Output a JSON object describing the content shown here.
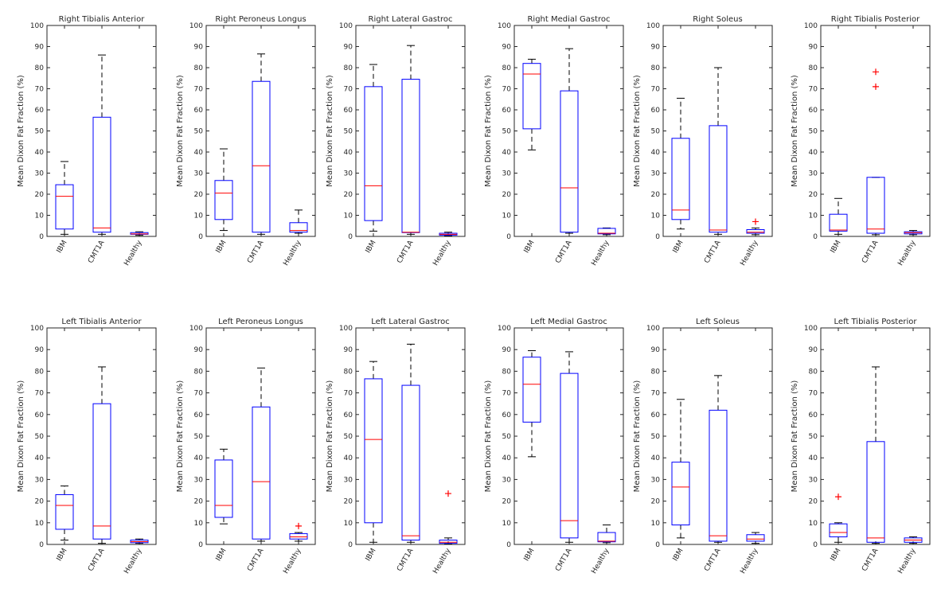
{
  "figure": {
    "layout": "2 rows x 6 columns of box plots"
  },
  "colors": {
    "box": "#0000ff",
    "median": "#ff0000",
    "whisker": "#000000",
    "outlier": "#ff0000",
    "axis": "#262626",
    "background": "#ffffff"
  },
  "chart_data": [
    {
      "type": "box",
      "title": "Right Tibialis Anterior",
      "ylabel": "Mean Dixon Fat Fraction (%)",
      "ylim": [
        0,
        100
      ],
      "yticks": [
        0,
        10,
        20,
        30,
        40,
        50,
        60,
        70,
        80,
        90,
        100
      ],
      "categories": [
        "IBM",
        "CMT1A",
        "Healthy"
      ],
      "boxes": [
        {
          "min": 1,
          "q1": 3.5,
          "median": 19,
          "q3": 24.5,
          "max": 35.5,
          "outliers": []
        },
        {
          "min": 1,
          "q1": 2,
          "median": 4,
          "q3": 56.5,
          "max": 86,
          "outliers": []
        },
        {
          "min": 0.5,
          "q1": 1,
          "median": 1.2,
          "q3": 1.8,
          "max": 2.2,
          "outliers": []
        }
      ]
    },
    {
      "type": "box",
      "title": "Right Peroneus Longus",
      "ylabel": "Mean Dixon Fat Fraction (%)",
      "ylim": [
        0,
        100
      ],
      "yticks": [
        0,
        10,
        20,
        30,
        40,
        50,
        60,
        70,
        80,
        90,
        100
      ],
      "categories": [
        "IBM",
        "CMT1A",
        "Healthy"
      ],
      "boxes": [
        {
          "min": 2.8,
          "q1": 8,
          "median": 20.5,
          "q3": 26.5,
          "max": 41.5,
          "outliers": []
        },
        {
          "min": 1,
          "q1": 2,
          "median": 33.5,
          "q3": 73.5,
          "max": 86.5,
          "outliers": []
        },
        {
          "min": 1.5,
          "q1": 2,
          "median": 2.8,
          "q3": 6.5,
          "max": 12.5,
          "outliers": []
        }
      ]
    },
    {
      "type": "box",
      "title": "Right Lateral Gastroc",
      "ylabel": "Mean Dixon Fat Fraction (%)",
      "ylim": [
        0,
        100
      ],
      "yticks": [
        0,
        10,
        20,
        30,
        40,
        50,
        60,
        70,
        80,
        90,
        100
      ],
      "categories": [
        "IBM",
        "CMT1A",
        "Healthy"
      ],
      "boxes": [
        {
          "min": 2.5,
          "q1": 7.5,
          "median": 24,
          "q3": 71,
          "max": 81.5,
          "outliers": []
        },
        {
          "min": 1,
          "q1": 1.8,
          "median": 2,
          "q3": 74.5,
          "max": 90.5,
          "outliers": []
        },
        {
          "min": 0.3,
          "q1": 0.6,
          "median": 1,
          "q3": 1.5,
          "max": 2,
          "outliers": []
        }
      ]
    },
    {
      "type": "box",
      "title": "Right Medial Gastroc",
      "ylabel": "Mean Dixon Fat Fraction (%)",
      "ylim": [
        0,
        100
      ],
      "yticks": [
        0,
        10,
        20,
        30,
        40,
        50,
        60,
        70,
        80,
        90,
        100
      ],
      "categories": [
        "IBM",
        "CMT1A",
        "Healthy"
      ],
      "boxes": [
        {
          "min": 41,
          "q1": 51,
          "median": 77,
          "q3": 82,
          "max": 84,
          "outliers": []
        },
        {
          "min": 1.5,
          "q1": 2,
          "median": 23,
          "q3": 69,
          "max": 89,
          "outliers": []
        },
        {
          "min": 0.8,
          "q1": 1.2,
          "median": 1.5,
          "q3": 3.8,
          "max": 4,
          "outliers": []
        }
      ]
    },
    {
      "type": "box",
      "title": "Right Soleus",
      "ylabel": "Mean Dixon Fat Fraction (%)",
      "ylim": [
        0,
        100
      ],
      "yticks": [
        0,
        10,
        20,
        30,
        40,
        50,
        60,
        70,
        80,
        90,
        100
      ],
      "categories": [
        "IBM",
        "CMT1A",
        "Healthy"
      ],
      "boxes": [
        {
          "min": 3.5,
          "q1": 8,
          "median": 12.5,
          "q3": 46.5,
          "max": 65.5,
          "outliers": []
        },
        {
          "min": 1,
          "q1": 2,
          "median": 3,
          "q3": 52.5,
          "max": 80,
          "outliers": []
        },
        {
          "min": 0.8,
          "q1": 1.5,
          "median": 2,
          "q3": 3.2,
          "max": 4,
          "outliers": [
            7
          ]
        }
      ]
    },
    {
      "type": "box",
      "title": "Right Tibialis Posterior",
      "ylabel": "Mean Dixon Fat Fraction (%)",
      "ylim": [
        0,
        100
      ],
      "yticks": [
        0,
        10,
        20,
        30,
        40,
        50,
        60,
        70,
        80,
        90,
        100
      ],
      "categories": [
        "IBM",
        "CMT1A",
        "Healthy"
      ],
      "boxes": [
        {
          "min": 1,
          "q1": 2.5,
          "median": 3,
          "q3": 10.5,
          "max": 18,
          "outliers": []
        },
        {
          "min": 0.8,
          "q1": 1.5,
          "median": 3.5,
          "q3": 28,
          "max": 28,
          "outliers": [
            71,
            78
          ]
        },
        {
          "min": 0.8,
          "q1": 1.2,
          "median": 1.8,
          "q3": 2.2,
          "max": 2.8,
          "outliers": []
        }
      ]
    },
    {
      "type": "box",
      "title": "Left Tibialis Anterior",
      "ylabel": "Mean Dixon Fat Fraction (%)",
      "ylim": [
        0,
        100
      ],
      "yticks": [
        0,
        10,
        20,
        30,
        40,
        50,
        60,
        70,
        80,
        90,
        100
      ],
      "categories": [
        "IBM",
        "CMT1A",
        "Healthy"
      ],
      "boxes": [
        {
          "min": 2,
          "q1": 7,
          "median": 18,
          "q3": 23,
          "max": 27,
          "outliers": []
        },
        {
          "min": 0.5,
          "q1": 2.5,
          "median": 8.5,
          "q3": 65,
          "max": 82,
          "outliers": []
        },
        {
          "min": 0.5,
          "q1": 0.8,
          "median": 1.3,
          "q3": 2,
          "max": 2.5,
          "outliers": []
        }
      ]
    },
    {
      "type": "box",
      "title": "Left Peroneus Longus",
      "ylabel": "Mean Dixon Fat Fraction (%)",
      "ylim": [
        0,
        100
      ],
      "yticks": [
        0,
        10,
        20,
        30,
        40,
        50,
        60,
        70,
        80,
        90,
        100
      ],
      "categories": [
        "IBM",
        "CMT1A",
        "Healthy"
      ],
      "boxes": [
        {
          "min": 9.5,
          "q1": 12.5,
          "median": 18,
          "q3": 39,
          "max": 44,
          "outliers": []
        },
        {
          "min": 1.5,
          "q1": 2.5,
          "median": 29,
          "q3": 63.5,
          "max": 81.5,
          "outliers": []
        },
        {
          "min": 1.5,
          "q1": 2.5,
          "median": 3.5,
          "q3": 5,
          "max": 5.5,
          "outliers": [
            8.5
          ]
        }
      ]
    },
    {
      "type": "box",
      "title": "Left Lateral Gastroc",
      "ylabel": "Mean Dixon Fat Fraction (%)",
      "ylim": [
        0,
        100
      ],
      "yticks": [
        0,
        10,
        20,
        30,
        40,
        50,
        60,
        70,
        80,
        90,
        100
      ],
      "categories": [
        "IBM",
        "CMT1A",
        "Healthy"
      ],
      "boxes": [
        {
          "min": 1,
          "q1": 10,
          "median": 48.5,
          "q3": 76.5,
          "max": 84.5,
          "outliers": []
        },
        {
          "min": 1,
          "q1": 2,
          "median": 4,
          "q3": 73.5,
          "max": 92.5,
          "outliers": []
        },
        {
          "min": 0.3,
          "q1": 0.5,
          "median": 1,
          "q3": 2,
          "max": 3,
          "outliers": [
            23.5
          ]
        }
      ]
    },
    {
      "type": "box",
      "title": "Left Medial Gastroc",
      "ylabel": "Mean Dixon Fat Fraction (%)",
      "ylim": [
        0,
        100
      ],
      "yticks": [
        0,
        10,
        20,
        30,
        40,
        50,
        60,
        70,
        80,
        90,
        100
      ],
      "categories": [
        "IBM",
        "CMT1A",
        "Healthy"
      ],
      "boxes": [
        {
          "min": 40.5,
          "q1": 56.5,
          "median": 74,
          "q3": 86.5,
          "max": 89.5,
          "outliers": []
        },
        {
          "min": 1,
          "q1": 3,
          "median": 11,
          "q3": 79,
          "max": 89,
          "outliers": []
        },
        {
          "min": 0.8,
          "q1": 1.2,
          "median": 1.5,
          "q3": 5.5,
          "max": 9,
          "outliers": []
        }
      ]
    },
    {
      "type": "box",
      "title": "Left Soleus",
      "ylabel": "Mean Dixon Fat Fraction (%)",
      "ylim": [
        0,
        100
      ],
      "yticks": [
        0,
        10,
        20,
        30,
        40,
        50,
        60,
        70,
        80,
        90,
        100
      ],
      "categories": [
        "IBM",
        "CMT1A",
        "Healthy"
      ],
      "boxes": [
        {
          "min": 3,
          "q1": 9,
          "median": 26.5,
          "q3": 38,
          "max": 67,
          "outliers": []
        },
        {
          "min": 1,
          "q1": 1.5,
          "median": 4,
          "q3": 62,
          "max": 78,
          "outliers": []
        },
        {
          "min": 0.5,
          "q1": 1.5,
          "median": 2.5,
          "q3": 4.5,
          "max": 5.5,
          "outliers": []
        }
      ]
    },
    {
      "type": "box",
      "title": "Left Tibialis Posterior",
      "ylabel": "Mean Dixon Fat Fraction (%)",
      "ylim": [
        0,
        100
      ],
      "yticks": [
        0,
        10,
        20,
        30,
        40,
        50,
        60,
        70,
        80,
        90,
        100
      ],
      "categories": [
        "IBM",
        "CMT1A",
        "Healthy"
      ],
      "boxes": [
        {
          "min": 1,
          "q1": 3.5,
          "median": 5.5,
          "q3": 9.5,
          "max": 10,
          "outliers": [
            22
          ]
        },
        {
          "min": 0.5,
          "q1": 1,
          "median": 3,
          "q3": 47.5,
          "max": 82,
          "outliers": []
        },
        {
          "min": 0.5,
          "q1": 1,
          "median": 2,
          "q3": 3,
          "max": 3.5,
          "outliers": []
        }
      ]
    }
  ]
}
